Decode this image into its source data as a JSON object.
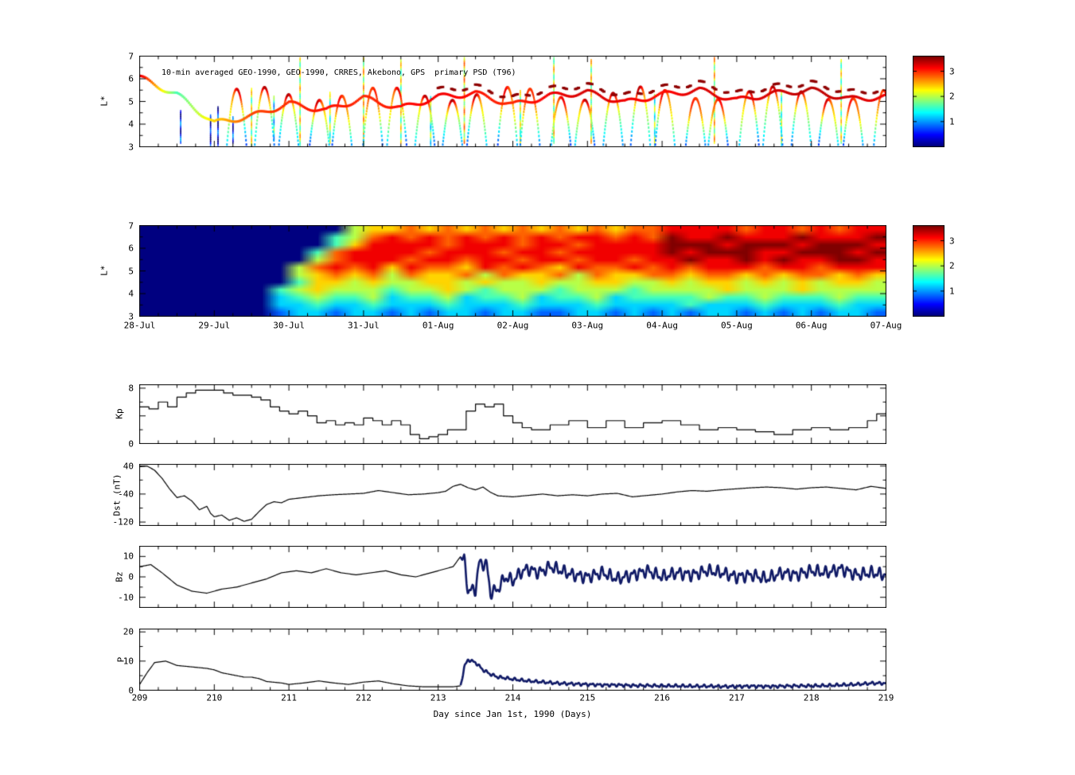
{
  "figure": {
    "background": "#ffffff"
  },
  "chart_data": [
    {
      "id": "psd-observed",
      "type": "scatter",
      "title": "10-min averaged GEO-1990, GEO-1990, CRRES, Akebono, GPS  primary PSD (T96)",
      "ylabel": "L*",
      "xlim": [
        209,
        219
      ],
      "ylim": [
        3,
        7
      ],
      "yticks": [
        7,
        6,
        5,
        4,
        3
      ],
      "vmin": 0,
      "vmax": 3.6,
      "colorbar_ticks": [
        3,
        2,
        1
      ],
      "geo_track": {
        "t": [
          209,
          209.5,
          210,
          210.5,
          211,
          211.5,
          212,
          212.5,
          213,
          213.5,
          214,
          214.5,
          215,
          215.5,
          216,
          216.5,
          217,
          217.5,
          218,
          218.5,
          219
        ],
        "L": [
          6.05,
          5.3,
          4.05,
          4.35,
          4.9,
          4.6,
          5.15,
          4.7,
          5.2,
          5.35,
          4.85,
          5.25,
          5.4,
          4.95,
          5.3,
          5.5,
          5.05,
          5.35,
          5.5,
          5.1,
          5.2
        ],
        "v": [
          3.3,
          1.6,
          2.4,
          2.9,
          3.0,
          3.1,
          3.0,
          3.1,
          3.2,
          3.1,
          3.0,
          3.2,
          3.3,
          3.2,
          3.1,
          3.3,
          3.2,
          3.3,
          3.4,
          3.3,
          3.2
        ]
      },
      "crres_arcs": {
        "start": 210.3,
        "period": 0.36,
        "count": 25,
        "Lmin": 3.1,
        "Lpeak": 5.35,
        "half_width": 0.13
      },
      "sat_ticks": [
        {
          "t": 209.55,
          "l0": 3.2,
          "l1": 4.6,
          "v": 0.5
        },
        {
          "t": 209.95,
          "l0": 3.1,
          "l1": 4.4,
          "v": 0.3
        },
        {
          "t": 210.05,
          "l0": 3.1,
          "l1": 4.8,
          "v": 0.4
        },
        {
          "t": 210.25,
          "l0": 3.2,
          "l1": 4.3,
          "v": 0.5
        },
        {
          "t": 210.5,
          "l0": 3.1,
          "l1": 5.6,
          "v": 2.0
        },
        {
          "t": 210.8,
          "l0": 3.3,
          "l1": 5.2,
          "v": 1.4
        },
        {
          "t": 211.15,
          "l0": 3.1,
          "l1": 6.9,
          "v": 2.1
        },
        {
          "t": 211.55,
          "l0": 3.2,
          "l1": 5.4,
          "v": 1.8
        },
        {
          "t": 212.0,
          "l0": 3.1,
          "l1": 6.9,
          "v": 2.2
        },
        {
          "t": 212.5,
          "l0": 3.2,
          "l1": 6.8,
          "v": 2.0
        },
        {
          "t": 212.9,
          "l0": 3.1,
          "l1": 5.2,
          "v": 1.6
        },
        {
          "t": 213.35,
          "l0": 3.2,
          "l1": 6.9,
          "v": 2.3
        },
        {
          "t": 214.1,
          "l0": 3.1,
          "l1": 5.5,
          "v": 1.9
        },
        {
          "t": 214.55,
          "l0": 3.2,
          "l1": 6.9,
          "v": 2.1
        },
        {
          "t": 215.05,
          "l0": 3.2,
          "l1": 6.8,
          "v": 2.1
        },
        {
          "t": 215.9,
          "l0": 3.1,
          "l1": 5.3,
          "v": 1.7
        },
        {
          "t": 216.7,
          "l0": 3.2,
          "l1": 6.9,
          "v": 2.2
        },
        {
          "t": 217.6,
          "l0": 3.1,
          "l1": 5.4,
          "v": 1.8
        },
        {
          "t": 218.4,
          "l0": 3.2,
          "l1": 6.8,
          "v": 2.0
        }
      ]
    },
    {
      "id": "psd-model",
      "type": "heatmap",
      "ylabel": "L*",
      "ylim": [
        3,
        7
      ],
      "yticks": [
        7,
        6,
        5,
        4,
        3
      ],
      "vmin": 0,
      "vmax": 3.6,
      "value_scale": 0.4,
      "colorbar_ticks": [
        3,
        2,
        1
      ],
      "xtick_labels": [
        "28-Jul",
        "29-Jul",
        "30-Jul",
        "31-Jul",
        "01-Aug",
        "02-Aug",
        "03-Aug",
        "04-Aug",
        "05-Aug",
        "06-Aug",
        "07-Aug"
      ],
      "grid_rows": [
        "0000000000056676767676767677888878878788",
        "0000000000457878787878788787988988898889",
        "0000000000468888788878878888999899989998",
        "0000000004788887888788788888989998899989",
        "0000000005788878878878878878898898988998",
        "0000000057878687768787687787878887887888",
        "0000000056767576675766757667767767677676",
        "0000000046656556656556556655656656565665",
        "0000000456555455654555455545555655565555",
        "0000000345445344534453445344445445444544",
        "0000000334334333433343334333343334333433",
        "0000000233233232332332233232323323232332"
      ]
    },
    {
      "id": "kp",
      "type": "line",
      "ylabel": "Kp",
      "ylim": [
        0,
        8.5
      ],
      "ytick_labels": [
        [
          "8",
          8
        ],
        [
          "0",
          0
        ]
      ],
      "ytick_vals": [
        0,
        4,
        8
      ],
      "ytick_minor": [
        2,
        6
      ],
      "step": true,
      "x": [
        209,
        209.125,
        209.25,
        209.375,
        209.5,
        209.625,
        209.75,
        209.875,
        210,
        210.125,
        210.25,
        210.375,
        210.5,
        210.625,
        210.75,
        210.875,
        211,
        211.125,
        211.25,
        211.375,
        211.5,
        211.625,
        211.75,
        211.875,
        212,
        212.125,
        212.25,
        212.375,
        212.5,
        212.625,
        212.75,
        212.875,
        213,
        213.125,
        213.25,
        213.375,
        213.5,
        213.625,
        213.75,
        213.875,
        214,
        214.125,
        214.25,
        214.5,
        214.75,
        215,
        215.25,
        215.5,
        215.75,
        216,
        216.25,
        216.5,
        216.75,
        217,
        217.25,
        217.5,
        217.75,
        218,
        218.25,
        218.5,
        218.75,
        218.875,
        219
      ],
      "y": [
        5.3,
        5,
        6,
        5.3,
        6.7,
        7.3,
        7.7,
        7.7,
        7.7,
        7.3,
        7,
        7,
        6.7,
        6.3,
        5.3,
        4.7,
        4.3,
        4.7,
        4,
        3,
        3.3,
        2.7,
        3,
        2.7,
        3.7,
        3.3,
        2.7,
        3.3,
        2.7,
        1.3,
        0.7,
        1,
        1.3,
        2,
        2,
        4.7,
        5.7,
        5.3,
        5.7,
        4,
        3,
        2.3,
        2,
        2.7,
        3.3,
        2.3,
        3.3,
        2.3,
        3,
        3.3,
        2.7,
        2,
        2.3,
        2,
        1.7,
        1.3,
        2,
        2.3,
        2,
        2.3,
        3.3,
        4.3,
        4.7
      ]
    },
    {
      "id": "dst",
      "type": "line",
      "ylabel": "Dst (nT)",
      "ylim": [
        -130,
        45
      ],
      "ytick_labels": [
        [
          "40",
          40
        ],
        [
          "-40",
          -40
        ],
        [
          "-120",
          -120
        ]
      ],
      "ytick_vals": [
        40,
        -40,
        -120
      ],
      "ytick_minor": [
        0,
        -80
      ],
      "x": [
        209,
        209.1,
        209.2,
        209.3,
        209.4,
        209.5,
        209.6,
        209.7,
        209.8,
        209.9,
        209.95,
        210,
        210.1,
        210.2,
        210.3,
        210.4,
        210.5,
        210.6,
        210.7,
        210.8,
        210.9,
        211,
        211.2,
        211.4,
        211.6,
        211.8,
        212,
        212.2,
        212.4,
        212.6,
        212.8,
        213,
        213.1,
        213.2,
        213.3,
        213.4,
        213.5,
        213.6,
        213.7,
        213.8,
        214,
        214.2,
        214.4,
        214.6,
        214.8,
        215,
        215.2,
        215.4,
        215.6,
        215.8,
        216,
        216.2,
        216.4,
        216.6,
        216.8,
        217,
        217.2,
        217.4,
        217.6,
        217.8,
        218,
        218.2,
        218.4,
        218.6,
        218.8,
        219
      ],
      "y": [
        38,
        40,
        28,
        5,
        -25,
        -50,
        -45,
        -60,
        -85,
        -75,
        -95,
        -105,
        -100,
        -115,
        -108,
        -118,
        -112,
        -90,
        -70,
        -62,
        -65,
        -55,
        -50,
        -45,
        -42,
        -40,
        -38,
        -30,
        -36,
        -42,
        -40,
        -36,
        -32,
        -18,
        -12,
        -22,
        -28,
        -20,
        -35,
        -45,
        -48,
        -44,
        -40,
        -45,
        -42,
        -45,
        -40,
        -38,
        -48,
        -44,
        -40,
        -34,
        -30,
        -32,
        -28,
        -25,
        -22,
        -20,
        -22,
        -26,
        -22,
        -20,
        -24,
        -28,
        -18,
        -24
      ]
    },
    {
      "id": "bz",
      "type": "line",
      "ylabel": "Bz",
      "ylim": [
        -15,
        15
      ],
      "ytick_labels": [
        [
          "10",
          10
        ],
        [
          "0",
          0
        ],
        [
          "-10",
          -10
        ]
      ],
      "ytick_vals": [
        10,
        0,
        -10
      ],
      "ytick_minor": [
        5,
        -5
      ],
      "thick_after": 213.3,
      "x": [
        209,
        209.15,
        209.3,
        209.5,
        209.7,
        209.9,
        210.1,
        210.3,
        210.5,
        210.7,
        210.9,
        211.1,
        211.3,
        211.5,
        211.7,
        211.9,
        212.1,
        212.3,
        212.5,
        212.7,
        212.9,
        213,
        213.1,
        213.2,
        213.3,
        213.35,
        213.4,
        213.5,
        213.55,
        213.65,
        213.7,
        213.8,
        213.9,
        214,
        214.1,
        214.2,
        214.35,
        214.5,
        214.65,
        214.8,
        215,
        215.2,
        215.4,
        215.6,
        215.8,
        216,
        216.2,
        216.4,
        216.6,
        216.8,
        217,
        217.2,
        217.4,
        217.6,
        217.8,
        218,
        218.2,
        218.4,
        218.6,
        218.8,
        219
      ],
      "y": [
        5,
        6,
        2,
        -4,
        -7,
        -8,
        -6,
        -5,
        -3,
        -1,
        2,
        3,
        2,
        4,
        2,
        1,
        2,
        3,
        1,
        0,
        2,
        3,
        4,
        5,
        10,
        8,
        -7,
        -6,
        7,
        6,
        -8,
        -6,
        0,
        -2,
        2,
        4,
        2,
        5,
        3,
        1,
        0,
        2,
        -1,
        1,
        3,
        0,
        2,
        1,
        3,
        2,
        0,
        1,
        -1,
        2,
        1,
        3,
        2,
        4,
        1,
        2,
        1
      ]
    },
    {
      "id": "p",
      "type": "line",
      "ylabel": "P",
      "ylim": [
        0,
        21
      ],
      "ytick_labels": [
        [
          "20",
          20
        ],
        [
          "10",
          10
        ],
        [
          "0",
          0
        ]
      ],
      "ytick_vals": [
        0,
        10,
        20
      ],
      "ytick_minor": [
        5,
        15
      ],
      "thick_after": 213.3,
      "xlabel": "Day since Jan 1st, 1990 (Days)",
      "xtick_labels": [
        "209",
        "210",
        "211",
        "212",
        "213",
        "214",
        "215",
        "216",
        "217",
        "218",
        "219"
      ],
      "x": [
        209,
        209.1,
        209.2,
        209.35,
        209.5,
        209.7,
        209.9,
        210,
        210.1,
        210.2,
        210.4,
        210.5,
        210.6,
        210.7,
        210.9,
        211,
        211.2,
        211.4,
        211.6,
        211.8,
        212,
        212.2,
        212.4,
        212.6,
        212.8,
        213,
        213.2,
        213.3,
        213.35,
        213.4,
        213.5,
        213.6,
        213.7,
        213.8,
        213.9,
        214,
        214.2,
        214.4,
        214.6,
        214.8,
        215,
        215.2,
        215.4,
        215.6,
        215.8,
        216,
        216.2,
        216.4,
        216.6,
        216.8,
        217,
        217.2,
        217.4,
        217.6,
        217.8,
        218,
        218.2,
        218.4,
        218.6,
        218.8,
        219
      ],
      "y": [
        2,
        6,
        9.5,
        10,
        8.5,
        8,
        7.5,
        7,
        6,
        5.5,
        4.5,
        4.5,
        4,
        3,
        2.5,
        2,
        2.5,
        3.2,
        2.5,
        2,
        2.8,
        3.2,
        2.2,
        1.5,
        1.2,
        1.2,
        1.2,
        1.5,
        8,
        10.5,
        9.5,
        7,
        5.5,
        4.5,
        4.2,
        3.8,
        3.2,
        2.8,
        2.4,
        2.2,
        2,
        1.8,
        1.8,
        1.6,
        1.6,
        1.5,
        1.5,
        1.4,
        1.4,
        1.3,
        1.3,
        1.4,
        1.3,
        1.4,
        1.5,
        1.5,
        1.6,
        1.8,
        2,
        2.4,
        2.4
      ]
    }
  ]
}
